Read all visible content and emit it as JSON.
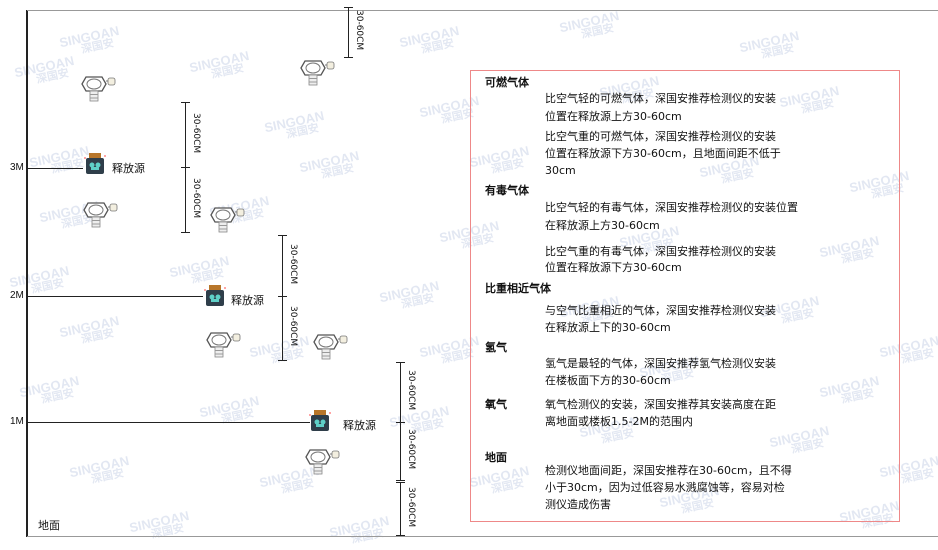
{
  "watermark": {
    "brand": "SINGOAN",
    "cn": "深国安"
  },
  "levels": {
    "l3": "3M",
    "l2": "2M",
    "l1": "1M",
    "ground": "地面"
  },
  "source_label": "释放源",
  "dim_label": "30-60CM",
  "sections": [
    {
      "title": "可燃气体",
      "paras": [
        [
          "比空气轻的可燃气体，深国安推荐检测仪的安装",
          "位置在释放源上方30-60cm"
        ],
        [
          "比空气重的可燃气体，深国安推荐检测仪的安装",
          "位置在释放源下方30-60cm，且地面间距不低于",
          "30cm"
        ]
      ]
    },
    {
      "title": "有毒气体",
      "paras": [
        [
          "比空气轻的有毒气体，深国安推荐检测仪的安装位置",
          "在释放源上方30-60cm"
        ],
        [
          "比空气重的有毒气体，深国安推荐检测仪的安装",
          "位置在释放源下方30-60cm"
        ]
      ]
    },
    {
      "title": "比重相近气体",
      "paras": [
        [
          "与空气比重相近的气体，深国安推荐检测仪安装",
          "在释放源上下的30-60cm"
        ]
      ]
    },
    {
      "title": "氢气",
      "paras": [
        [
          "氢气是最轻的气体，深国安推荐氢气检测仪安装",
          "在楼板面下方的30-60cm"
        ]
      ]
    },
    {
      "title": "氧气",
      "paras": [
        [
          "氧气检测仪的安装，深国安推荐其安装高度在距",
          "离地面或楼板1.5-2M的范围内"
        ]
      ]
    },
    {
      "title": "地面",
      "paras": [
        [
          "检测仪地面间距，深国安推荐在30-60cm，且不得",
          "小于30cm，因为过低容易水溅腐蚀等，容易对检",
          "测仪造成伤害"
        ]
      ]
    }
  ],
  "colors": {
    "box_border": "#ee8888",
    "source_body": "#2f3e4a",
    "source_cap": "#b8762a",
    "source_eyes": "#5fd0c8"
  }
}
